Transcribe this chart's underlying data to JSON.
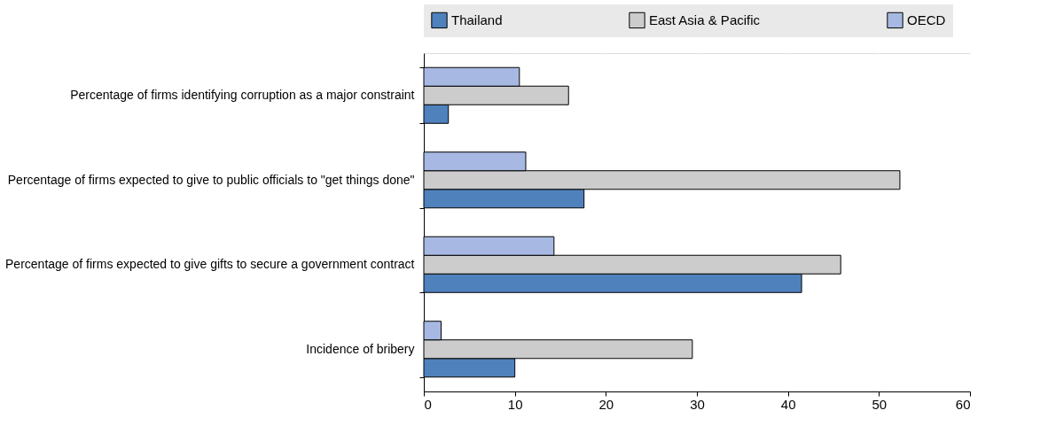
{
  "chart_data": {
    "type": "bar",
    "orientation": "horizontal",
    "categories": [
      "Percentage of firms identifying corruption as a major constraint",
      "Percentage of firms expected to give to public officials to \"get things done\"",
      "Percentage of firms expected to give gifts to secure a government contract",
      "Incidence of bribery"
    ],
    "series": [
      {
        "name": "Thailand",
        "color": "#4f81bd",
        "values": [
          2.7,
          17.6,
          41.5,
          10.0
        ]
      },
      {
        "name": "East Asia & Pacific",
        "color": "#cccccc",
        "values": [
          15.9,
          52.3,
          45.8,
          29.5
        ]
      },
      {
        "name": "OECD",
        "color": "#a7b9e3",
        "values": [
          10.5,
          11.2,
          14.3,
          1.9
        ]
      }
    ],
    "xlim": [
      0,
      60
    ],
    "xticks": [
      0,
      10,
      20,
      30,
      40,
      50,
      60
    ],
    "grid": "x",
    "legend": "top"
  }
}
